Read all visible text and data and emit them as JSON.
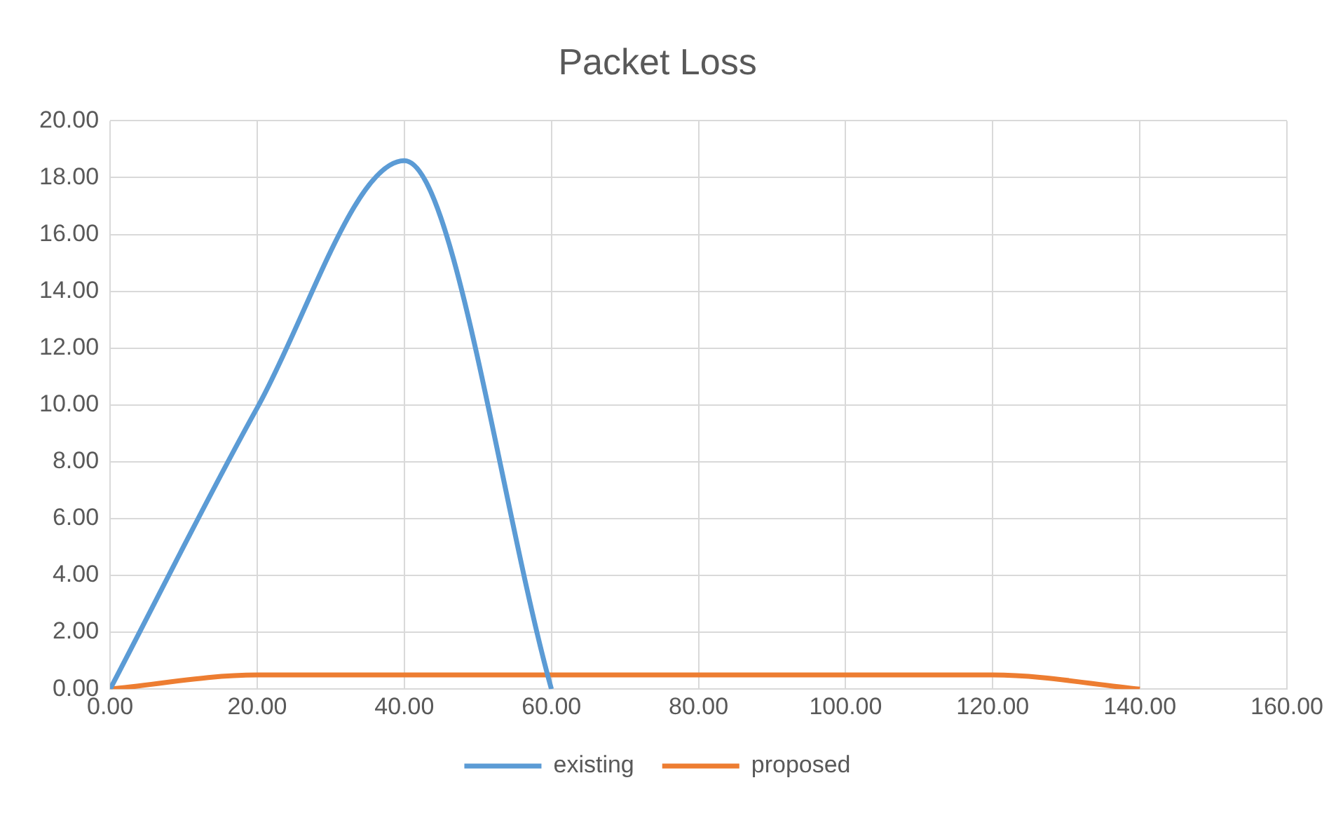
{
  "chart_data": {
    "type": "line",
    "title": "Packet Loss",
    "series": [
      {
        "name": "existing",
        "color": "#5b9bd5",
        "x": [
          0,
          20,
          40,
          60
        ],
        "values": [
          0,
          9.9,
          18.6,
          0
        ]
      },
      {
        "name": "proposed",
        "color": "#ed7d31",
        "x": [
          0,
          20,
          40,
          60,
          80,
          100,
          120,
          140
        ],
        "values": [
          0,
          0.5,
          0.5,
          0.5,
          0.5,
          0.5,
          0.5,
          0
        ]
      }
    ],
    "xlim": [
      0,
      160
    ],
    "xticks": [
      {
        "value": 0,
        "label": "0.00"
      },
      {
        "value": 20,
        "label": "20.00"
      },
      {
        "value": 40,
        "label": "40.00"
      },
      {
        "value": 60,
        "label": "60.00"
      },
      {
        "value": 80,
        "label": "80.00"
      },
      {
        "value": 100,
        "label": "100.00"
      },
      {
        "value": 120,
        "label": "120.00"
      },
      {
        "value": 140,
        "label": "140.00"
      },
      {
        "value": 160,
        "label": "160.00"
      }
    ],
    "ylim": [
      0,
      20
    ],
    "yticks": [
      {
        "value": 0,
        "label": "0.00"
      },
      {
        "value": 2,
        "label": "2.00"
      },
      {
        "value": 4,
        "label": "4.00"
      },
      {
        "value": 6,
        "label": "6.00"
      },
      {
        "value": 8,
        "label": "8.00"
      },
      {
        "value": 10,
        "label": "10.00"
      },
      {
        "value": 12,
        "label": "12.00"
      },
      {
        "value": 14,
        "label": "14.00"
      },
      {
        "value": 16,
        "label": "16.00"
      },
      {
        "value": 18,
        "label": "18.00"
      },
      {
        "value": 20,
        "label": "20.00"
      }
    ],
    "grid": true,
    "legend": "bottom",
    "marker": "none",
    "line_style": "solid"
  }
}
